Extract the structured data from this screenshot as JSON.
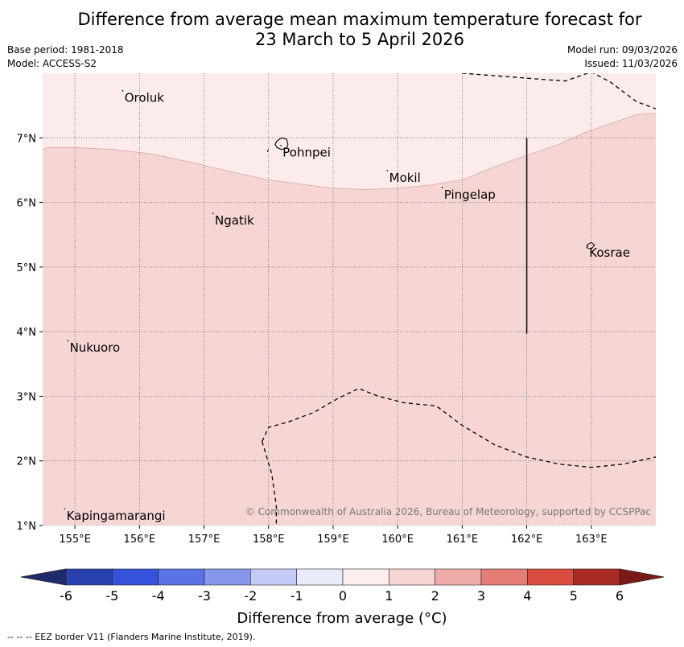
{
  "title": {
    "line1": "Difference from average mean maximum temperature forecast for",
    "line2": "23 March to 5 April 2026"
  },
  "meta": {
    "base_period": "Base period: 1981-2018",
    "model": "Model: ACCESS-S2",
    "model_run": "Model run: 09/03/2026",
    "issued": "Issued: 11/03/2026"
  },
  "map": {
    "lon_range": [
      154.5,
      164.0
    ],
    "lat_range": [
      1.0,
      8.0
    ],
    "x_ticks": [
      155,
      156,
      157,
      158,
      159,
      160,
      161,
      162,
      163
    ],
    "x_tick_labels": [
      "155°E",
      "156°E",
      "157°E",
      "158°E",
      "159°E",
      "160°E",
      "161°E",
      "162°E",
      "163°E"
    ],
    "y_ticks": [
      1,
      2,
      3,
      4,
      5,
      6,
      7
    ],
    "y_tick_labels": [
      "1°N",
      "2°N",
      "3°N",
      "4°N",
      "5°N",
      "6°N",
      "7°N"
    ],
    "colors": {
      "anomaly_0_1": "#fbebea",
      "anomaly_1_2": "#f5d6d5",
      "boundary_line": "#d9a8a6",
      "grid": "#555555",
      "eez": "#000000"
    },
    "zones": [
      {
        "range": "0 to 1",
        "description": "north"
      },
      {
        "range": "1 to 2",
        "description": "south"
      }
    ],
    "places": [
      {
        "name": "Oroluk",
        "lon": 155.75,
        "lat": 7.72
      },
      {
        "name": "Pohnpei",
        "lon": 158.2,
        "lat": 6.87
      },
      {
        "name": "Mokil",
        "lon": 159.85,
        "lat": 6.48
      },
      {
        "name": "Pingelap",
        "lon": 160.7,
        "lat": 6.22
      },
      {
        "name": "Ngatik",
        "lon": 157.15,
        "lat": 5.82
      },
      {
        "name": "Kosrae",
        "lon": 162.95,
        "lat": 5.32
      },
      {
        "name": "Nukuoro",
        "lon": 154.9,
        "lat": 3.85
      },
      {
        "name": "Kapingamarangi",
        "lon": 154.85,
        "lat": 1.25
      }
    ],
    "copyright": "© Commonwealth of Australia 2026, Bureau of Meteorology, supported by CCSPPac"
  },
  "colorbar": {
    "label": "Difference from average (°C)",
    "ticks": [
      "-6",
      "-5",
      "-4",
      "-3",
      "-2",
      "-1",
      "0",
      "1",
      "2",
      "3",
      "4",
      "5",
      "6"
    ],
    "under_color": "#1e2a6e",
    "over_color": "#7a1a18",
    "bins": [
      {
        "range": "-6 to -5",
        "color": "#2941ad"
      },
      {
        "range": "-5 to -4",
        "color": "#3552dc"
      },
      {
        "range": "-4 to -3",
        "color": "#5a72e3"
      },
      {
        "range": "-3 to -2",
        "color": "#8697ec"
      },
      {
        "range": "-2 to -1",
        "color": "#c3caf5"
      },
      {
        "range": "-1 to 0",
        "color": "#e9ebfb"
      },
      {
        "range": "0 to 1",
        "color": "#fdeeee"
      },
      {
        "range": "1 to 2",
        "color": "#f7d5d5"
      },
      {
        "range": "2 to 3",
        "color": "#efaaaa"
      },
      {
        "range": "3 to 4",
        "color": "#e57e77"
      },
      {
        "range": "4 to 5",
        "color": "#d94a3f"
      },
      {
        "range": "5 to 6",
        "color": "#a92a24"
      }
    ]
  },
  "footnote": "--  --  -- EEZ border V11 (Flanders Marine Institute, 2019)."
}
